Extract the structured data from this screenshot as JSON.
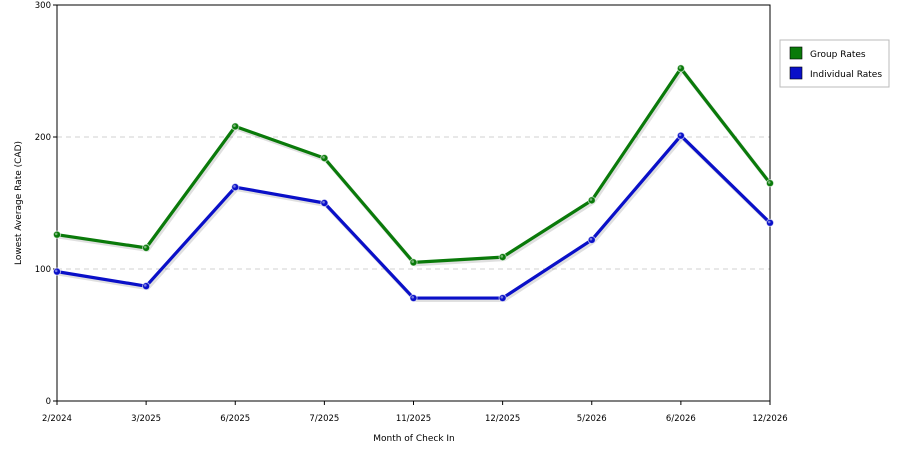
{
  "chart_data": {
    "type": "line",
    "xlabel": "Month of Check In",
    "ylabel": "Lowest Average Rate (CAD)",
    "categories": [
      "2/2024",
      "3/2025",
      "6/2025",
      "7/2025",
      "11/2025",
      "12/2025",
      "5/2026",
      "6/2026",
      "12/2026"
    ],
    "ylim": [
      0,
      300
    ],
    "yticks": [
      0,
      100,
      200,
      300
    ],
    "grid": "horizontal-dashed",
    "legend_position": "right",
    "series": [
      {
        "name": "Group Rates",
        "color": "#0a7a0a",
        "values": [
          126,
          116,
          208,
          184,
          105,
          109,
          152,
          252,
          165
        ]
      },
      {
        "name": "Individual Rates",
        "color": "#0a10c8",
        "values": [
          98,
          87,
          162,
          150,
          78,
          78,
          122,
          201,
          135
        ]
      }
    ]
  }
}
